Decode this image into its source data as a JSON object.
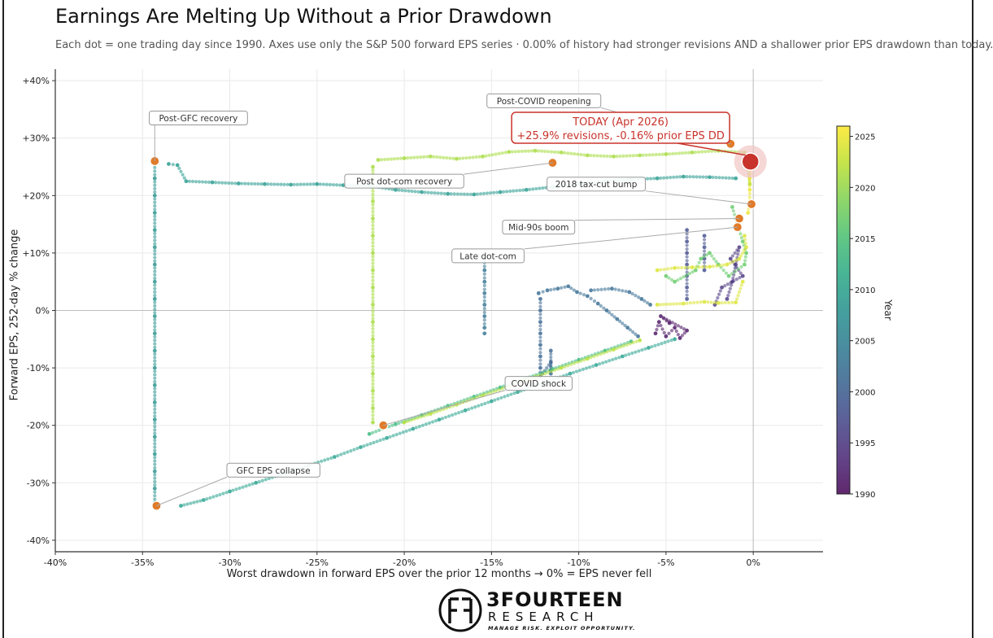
{
  "title": "Earnings Are Melting Up Without a Prior Drawdown",
  "subtitle": "Each dot = one trading day since 1990.  Axes use only the S&P 500 forward EPS series  ·  0.00% of history had stronger revisions AND a shallower prior EPS drawdown than today.",
  "logo": {
    "name": "3FOURTEEN",
    "sub": "RESEARCH",
    "tagline": "MANAGE RISK. EXPLOIT OPPORTUNITY."
  },
  "chart_data": {
    "type": "scatter",
    "xlabel": "Worst drawdown in forward EPS over the prior 12 months  →  0% = EPS never fell",
    "ylabel": "Forward EPS, 252-day % change",
    "xlim": [
      -40,
      4
    ],
    "ylim": [
      -42,
      42
    ],
    "x_ticks": [
      -40,
      -35,
      -30,
      -25,
      -20,
      -15,
      -10,
      -5,
      0
    ],
    "x_tick_labels": [
      "-40%",
      "-35%",
      "-30%",
      "-25%",
      "-20%",
      "-15%",
      "-10%",
      "-5%",
      "0%"
    ],
    "y_ticks": [
      -40,
      -30,
      -20,
      -10,
      0,
      10,
      20,
      30,
      40
    ],
    "y_tick_labels": [
      "-40%",
      "-30%",
      "-20%",
      "-10%",
      "0%",
      "+10%",
      "+20%",
      "+30%",
      "+40%"
    ],
    "grid": true,
    "colorbar": {
      "label": "Year",
      "ticks": [
        1990,
        1995,
        2000,
        2005,
        2010,
        2015,
        2020,
        2025
      ],
      "range": [
        1990,
        2026
      ],
      "colormap": "viridis"
    },
    "series": [
      {
        "path_description": "dot cluster",
        "year": 1991,
        "points": [
          [
            -5.6,
            -4
          ],
          [
            -5.4,
            -2
          ],
          [
            -5,
            -4.5
          ],
          [
            -4.5,
            -3
          ],
          [
            -4.2,
            -4.8
          ],
          [
            -3.8,
            -3.5
          ],
          [
            -5.3,
            -1
          ],
          [
            -4.8,
            -2.2
          ]
        ]
      },
      {
        "year": 1995,
        "points": [
          [
            -1.5,
            2
          ],
          [
            -1.2,
            5
          ],
          [
            -1,
            8
          ],
          [
            -0.8,
            11
          ],
          [
            -1.3,
            9
          ],
          [
            -0.6,
            6
          ],
          [
            -1.8,
            4
          ],
          [
            -2.2,
            1
          ]
        ]
      },
      {
        "year": 1998,
        "points": [
          [
            -3.8,
            14
          ],
          [
            -3.8,
            12
          ],
          [
            -3.8,
            10
          ],
          [
            -3.8,
            8
          ],
          [
            -3.8,
            6
          ],
          [
            -3.8,
            4
          ],
          [
            -3.8,
            2
          ],
          [
            -2.8,
            13
          ],
          [
            -2.8,
            11
          ],
          [
            -2.8,
            9
          ],
          [
            -2.8,
            7
          ]
        ]
      },
      {
        "year": 2001,
        "points": [
          [
            -12.2,
            2
          ],
          [
            -12.2,
            0
          ],
          [
            -12.2,
            -2
          ],
          [
            -12.2,
            -4
          ],
          [
            -12.2,
            -6
          ],
          [
            -12.2,
            -8
          ],
          [
            -12.2,
            -10
          ],
          [
            -12.2,
            -11.5
          ],
          [
            -11.6,
            -9
          ],
          [
            -11.6,
            -11
          ],
          [
            -11.6,
            -7
          ]
        ]
      },
      {
        "year": 2002,
        "points": [
          [
            -12.3,
            3
          ],
          [
            -11.8,
            3.5
          ],
          [
            -11.2,
            3.8
          ],
          [
            -10.6,
            4.2
          ],
          [
            -10.1,
            3.2
          ],
          [
            -9.5,
            2.5
          ],
          [
            -8.9,
            1.2
          ],
          [
            -8.4,
            0
          ],
          [
            -7.8,
            -1.5
          ],
          [
            -7.2,
            -3
          ],
          [
            -6.6,
            -4.5
          ],
          [
            -9.3,
            3.5
          ],
          [
            -8.1,
            3.8
          ],
          [
            -7.1,
            3.2
          ],
          [
            -6.4,
            2
          ],
          [
            -5.9,
            1
          ]
        ]
      },
      {
        "year": 2003,
        "points": [
          [
            -15.4,
            9
          ],
          [
            -15.4,
            7
          ],
          [
            -15.4,
            5
          ],
          [
            -15.4,
            3
          ],
          [
            -15.4,
            1
          ],
          [
            -15.4,
            -1
          ],
          [
            -15.4,
            -3
          ],
          [
            -15.4,
            -4
          ]
        ]
      },
      {
        "year": 2008,
        "points": [
          [
            -34.3,
            25.5
          ],
          [
            -34.3,
            23
          ],
          [
            -34.3,
            20
          ],
          [
            -34.3,
            17
          ],
          [
            -34.3,
            14
          ],
          [
            -34.3,
            11
          ],
          [
            -34.3,
            8
          ],
          [
            -34.3,
            5
          ],
          [
            -34.3,
            2
          ],
          [
            -34.3,
            -1
          ],
          [
            -34.3,
            -4
          ],
          [
            -34.3,
            -7
          ],
          [
            -34.3,
            -10
          ],
          [
            -34.3,
            -13
          ],
          [
            -34.3,
            -16
          ],
          [
            -34.3,
            -19
          ],
          [
            -34.3,
            -22
          ],
          [
            -34.3,
            -25
          ],
          [
            -34.3,
            -28
          ],
          [
            -34.3,
            -31
          ],
          [
            -34.3,
            -33.5
          ]
        ]
      },
      {
        "year": 2009,
        "points": [
          [
            -33.5,
            25.5
          ],
          [
            -33,
            25.3
          ],
          [
            -32.5,
            22.5
          ],
          [
            -31,
            22.3
          ],
          [
            -29.5,
            22.1
          ],
          [
            -28,
            22
          ],
          [
            -26.5,
            21.9
          ],
          [
            -25,
            22
          ],
          [
            -23.5,
            21.8
          ],
          [
            -22,
            21.7
          ],
          [
            -20.5,
            21
          ],
          [
            -19,
            20.6
          ],
          [
            -17.5,
            20.3
          ],
          [
            -16,
            20.2
          ],
          [
            -14.5,
            20.6
          ],
          [
            -13,
            21
          ],
          [
            -11.5,
            21.5
          ],
          [
            -10,
            22
          ],
          [
            -8.5,
            22.5
          ],
          [
            -7,
            22.8
          ],
          [
            -5.5,
            23
          ],
          [
            -4,
            23.3
          ],
          [
            -2.5,
            23.2
          ],
          [
            -1,
            23
          ]
        ]
      },
      {
        "year": 2010,
        "points": [
          [
            -32.8,
            -34
          ],
          [
            -31.5,
            -33
          ],
          [
            -30,
            -31.5
          ],
          [
            -28.5,
            -30
          ],
          [
            -27,
            -28.5
          ],
          [
            -25.5,
            -27
          ],
          [
            -24,
            -25.5
          ],
          [
            -22.5,
            -23.8
          ],
          [
            -21,
            -22.2
          ],
          [
            -19.5,
            -20.6
          ],
          [
            -18,
            -19
          ],
          [
            -16.5,
            -17.4
          ],
          [
            -15,
            -15.8
          ],
          [
            -13.5,
            -14.2
          ],
          [
            -12,
            -12.6
          ],
          [
            -10.5,
            -11
          ],
          [
            -9,
            -9.5
          ],
          [
            -7.5,
            -8
          ],
          [
            -6,
            -6.5
          ],
          [
            -4.5,
            -5
          ]
        ]
      },
      {
        "year": 2014,
        "points": [
          [
            -22,
            -21.5
          ],
          [
            -20.5,
            -19.8
          ],
          [
            -19,
            -18.2
          ],
          [
            -17.5,
            -16.6
          ],
          [
            -16,
            -15
          ],
          [
            -14.5,
            -13.4
          ],
          [
            -13,
            -11.8
          ],
          [
            -11.5,
            -10.2
          ],
          [
            -10,
            -8.6
          ],
          [
            -8.5,
            -7
          ],
          [
            -7,
            -5.4
          ]
        ]
      },
      {
        "year": 2017,
        "points": [
          [
            -1.2,
            18
          ],
          [
            -1,
            16
          ],
          [
            -0.8,
            14
          ],
          [
            -0.6,
            12
          ],
          [
            -0.4,
            10
          ],
          [
            -0.5,
            8
          ],
          [
            -1.4,
            6
          ],
          [
            -2,
            8
          ],
          [
            -2.5,
            10
          ],
          [
            -3,
            9
          ],
          [
            -3.3,
            7
          ],
          [
            -4.5,
            5
          ],
          [
            -5,
            6
          ]
        ]
      },
      {
        "year": 2021,
        "points": [
          [
            -21.8,
            25
          ],
          [
            -21.8,
            22
          ],
          [
            -21.8,
            19
          ],
          [
            -21.8,
            16
          ],
          [
            -21.8,
            13
          ],
          [
            -21.8,
            10
          ],
          [
            -21.8,
            7
          ],
          [
            -21.8,
            4
          ],
          [
            -21.8,
            1
          ],
          [
            -21.8,
            -2
          ],
          [
            -21.8,
            -5
          ],
          [
            -21.8,
            -8
          ],
          [
            -21.8,
            -11
          ],
          [
            -21.8,
            -14
          ],
          [
            -21.8,
            -17
          ],
          [
            -21.8,
            -19.5
          ],
          [
            -21.5,
            26.2
          ],
          [
            -20,
            26.5
          ],
          [
            -18.5,
            26.8
          ],
          [
            -17,
            26.4
          ],
          [
            -15.5,
            26.8
          ],
          [
            -14,
            27.6
          ],
          [
            -12.5,
            27.8
          ],
          [
            -11,
            27.5
          ],
          [
            -9.5,
            27
          ],
          [
            -8,
            26.8
          ],
          [
            -6.5,
            27
          ],
          [
            -5,
            27.2
          ],
          [
            -3.5,
            27.5
          ],
          [
            -2,
            27.8
          ],
          [
            -0.5,
            27.5
          ],
          [
            -0.3,
            25
          ],
          [
            -0.2,
            22
          ]
        ]
      },
      {
        "year": 2022,
        "points": [
          [
            -20,
            -19.5
          ],
          [
            -18.5,
            -18
          ],
          [
            -17,
            -16.4
          ],
          [
            -15.5,
            -14.8
          ],
          [
            -14,
            -13.2
          ],
          [
            -12.5,
            -11.6
          ],
          [
            -11,
            -10
          ],
          [
            -9.5,
            -8.4
          ],
          [
            -8,
            -6.8
          ],
          [
            -6.5,
            -5.2
          ]
        ]
      },
      {
        "year": 2024,
        "points": [
          [
            -5.5,
            7
          ],
          [
            -4.5,
            7.4
          ],
          [
            -3.5,
            7.5
          ],
          [
            -2.5,
            7.6
          ],
          [
            -1.5,
            8
          ],
          [
            -0.8,
            9
          ],
          [
            -0.4,
            11
          ],
          [
            -0.5,
            13
          ],
          [
            -5.5,
            1
          ],
          [
            -4,
            1.2
          ],
          [
            -2.8,
            1.5
          ],
          [
            -2,
            1.3
          ],
          [
            -1,
            1.4
          ],
          [
            -0.6,
            5
          ]
        ]
      },
      {
        "year": 2025,
        "points": [
          [
            -0.3,
            17
          ],
          [
            -0.2,
            19
          ],
          [
            -0.2,
            21
          ],
          [
            -0.2,
            23
          ],
          [
            -0.15,
            25
          ]
        ]
      }
    ],
    "highlight_points": [
      {
        "label": "Post-GFC recovery",
        "x": -34.3,
        "y": 26,
        "label_x": -31.8,
        "label_y": 33.5
      },
      {
        "label": "Post-COVID reopening",
        "x": -1.3,
        "y": 29,
        "label_x": -12,
        "label_y": 36.5
      },
      {
        "label": "Post dot-com recovery",
        "x": -11.5,
        "y": 25.7,
        "label_x": -20,
        "label_y": 22.5
      },
      {
        "label": "2018 tax-cut bump",
        "x": -0.1,
        "y": 18.5,
        "label_x": -9,
        "label_y": 22
      },
      {
        "label": "Mid-90s boom",
        "x": -0.8,
        "y": 16,
        "label_x": -12.3,
        "label_y": 14.5
      },
      {
        "label": "Late dot-com",
        "x": -0.9,
        "y": 14.5,
        "label_x": -15.2,
        "label_y": 9.5
      },
      {
        "label": "COVID shock",
        "x": -21.2,
        "y": -20,
        "label_x": -12.3,
        "label_y": -12.7
      },
      {
        "label": "GFC EPS collapse",
        "x": -34.2,
        "y": -34,
        "label_x": -27.5,
        "label_y": -27.8
      }
    ],
    "today": {
      "line1": "TODAY  (Apr 2026)",
      "line2": "+25.9% revisions,  -0.16% prior EPS DD",
      "x": -0.16,
      "y": 25.9,
      "label_x": -7.6,
      "label_y": 31.8
    }
  },
  "colors": {
    "highlight": "#e07b2a",
    "today": "#c8332b",
    "today_halo": "#f1c6c4",
    "axis": "#333333",
    "grid": "#e9e9e9",
    "zero_line": "#bdbdbd"
  }
}
